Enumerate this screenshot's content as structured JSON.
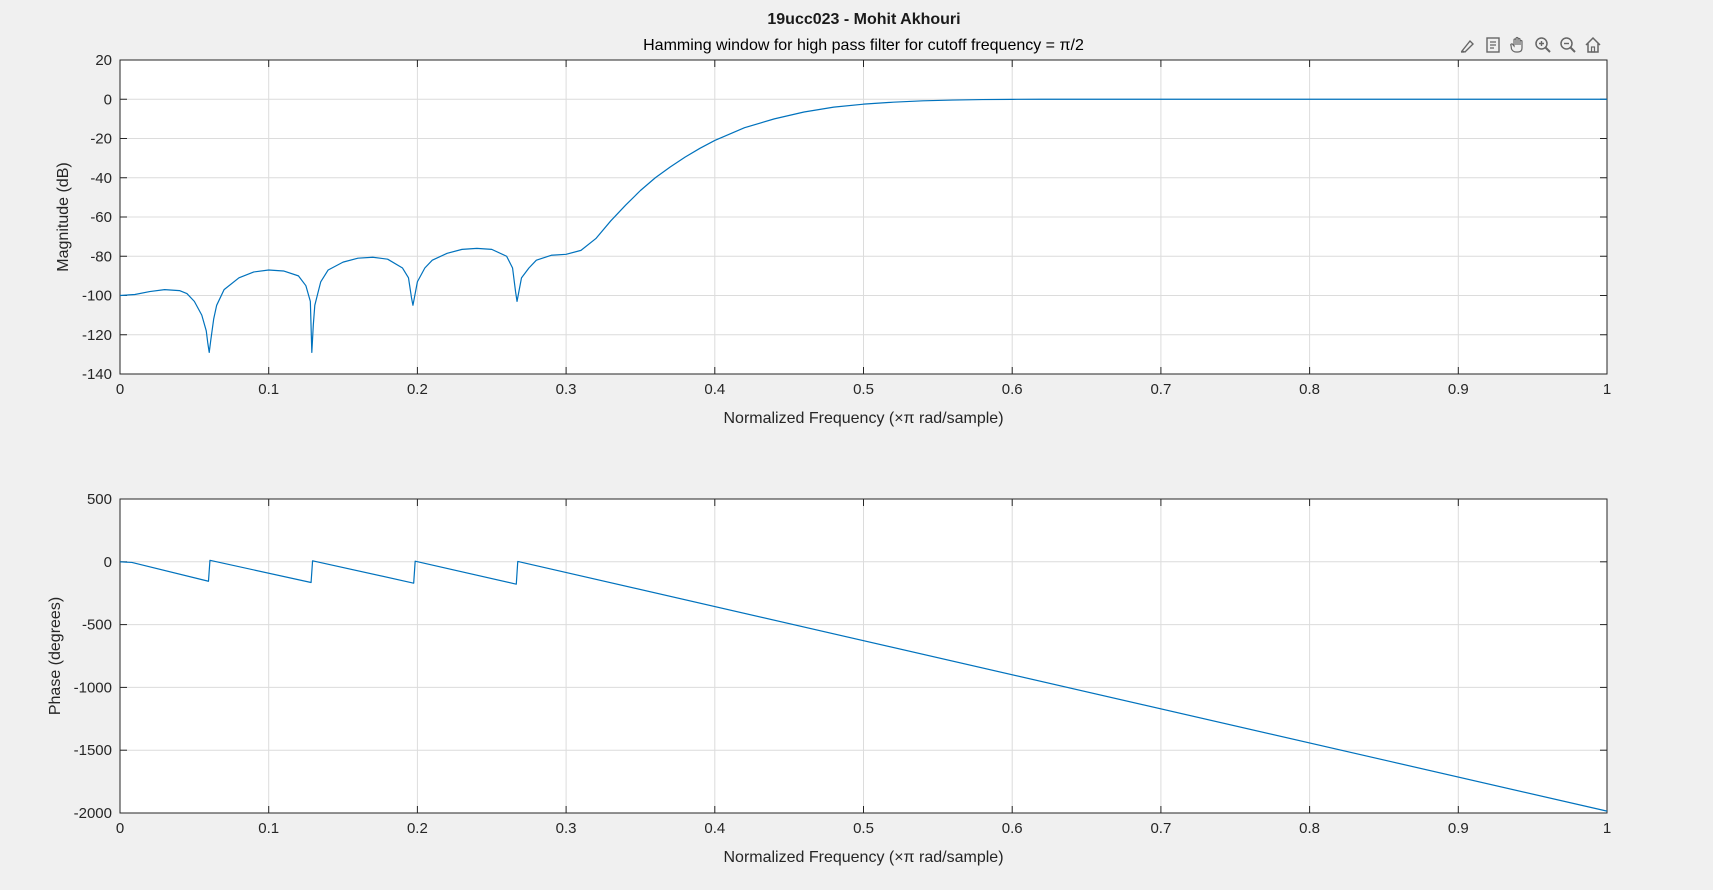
{
  "figure": {
    "suptitle": "19ucc023 - Mohit Akhouri",
    "colors": {
      "background": "#f0f0f0",
      "axes": "#ffffff",
      "line": "#0072bd",
      "grid": "#dcdcdc",
      "text": "#262626"
    }
  },
  "toolbar": {
    "icons": [
      "brush-icon",
      "datatip-icon",
      "pan-icon",
      "zoom-in-icon",
      "zoom-out-icon",
      "home-icon"
    ]
  },
  "chart_data": [
    {
      "type": "line",
      "title": "Hamming window for high pass filter for cutoff frequency = π/2",
      "xlabel": "Normalized Frequency  (×π rad/sample)",
      "ylabel": "Magnitude (dB)",
      "xlim": [
        0,
        1
      ],
      "ylim": [
        -140,
        20
      ],
      "xticks": [
        0,
        0.1,
        0.2,
        0.3,
        0.4,
        0.5,
        0.6,
        0.7,
        0.8,
        0.9,
        1
      ],
      "xtick_labels": [
        "0",
        "0.1",
        "0.2",
        "0.3",
        "0.4",
        "0.5",
        "0.6",
        "0.7",
        "0.8",
        "0.9",
        "1"
      ],
      "yticks": [
        20,
        0,
        -20,
        -40,
        -60,
        -80,
        -100,
        -120,
        -140
      ],
      "ytick_labels": [
        "20",
        "0",
        "-20",
        "-40",
        "-60",
        "-80",
        "-100",
        "-120",
        "-140"
      ],
      "grid": true,
      "series": [
        {
          "name": "magnitude",
          "x": [
            0,
            0.01,
            0.02,
            0.03,
            0.04,
            0.045,
            0.05,
            0.055,
            0.058,
            0.059,
            0.06,
            0.061,
            0.063,
            0.065,
            0.07,
            0.08,
            0.09,
            0.1,
            0.11,
            0.12,
            0.125,
            0.128,
            0.129,
            0.13,
            0.131,
            0.133,
            0.135,
            0.14,
            0.15,
            0.16,
            0.17,
            0.18,
            0.19,
            0.194,
            0.196,
            0.197,
            0.198,
            0.2,
            0.205,
            0.21,
            0.22,
            0.23,
            0.24,
            0.25,
            0.26,
            0.264,
            0.266,
            0.267,
            0.268,
            0.27,
            0.275,
            0.28,
            0.29,
            0.3,
            0.31,
            0.32,
            0.33,
            0.34,
            0.35,
            0.36,
            0.37,
            0.38,
            0.39,
            0.4,
            0.42,
            0.44,
            0.46,
            0.48,
            0.5,
            0.52,
            0.54,
            0.56,
            0.58,
            0.6,
            0.62,
            0.65,
            0.7,
            0.8,
            0.9,
            1.0
          ],
          "y": [
            -100,
            -99.5,
            -98,
            -97,
            -97.5,
            -99,
            -103,
            -110,
            -118,
            -124,
            -129,
            -123,
            -112,
            -105,
            -97,
            -91,
            -88,
            -87,
            -87.5,
            -90,
            -95,
            -103,
            -129,
            -115,
            -105,
            -99,
            -93,
            -87,
            -83,
            -81,
            -80.5,
            -81.5,
            -86,
            -91,
            -101,
            -105,
            -101,
            -93,
            -86,
            -82,
            -78.5,
            -76.5,
            -76,
            -76.5,
            -80,
            -86,
            -98,
            -103,
            -99,
            -91,
            -86,
            -82,
            -79.5,
            -79,
            -77,
            -71,
            -62,
            -54,
            -46.5,
            -40,
            -34.5,
            -29.5,
            -25,
            -21,
            -14.5,
            -10,
            -6.5,
            -4,
            -2.5,
            -1.5,
            -0.8,
            -0.4,
            -0.15,
            -0.05,
            0,
            0,
            0,
            0,
            0,
            0
          ]
        }
      ]
    },
    {
      "type": "line",
      "title": "",
      "xlabel": "Normalized Frequency  (×π rad/sample)",
      "ylabel": "Phase (degrees)",
      "xlim": [
        0,
        1
      ],
      "ylim": [
        -2000,
        500
      ],
      "xticks": [
        0,
        0.1,
        0.2,
        0.3,
        0.4,
        0.5,
        0.6,
        0.7,
        0.8,
        0.9,
        1
      ],
      "xtick_labels": [
        "0",
        "0.1",
        "0.2",
        "0.3",
        "0.4",
        "0.5",
        "0.6",
        "0.7",
        "0.8",
        "0.9",
        "1"
      ],
      "yticks": [
        500,
        0,
        -500,
        -1000,
        -1500,
        -2000
      ],
      "ytick_labels": [
        "500",
        "0",
        "-500",
        "-1000",
        "-1500",
        "-2000"
      ],
      "grid": true,
      "series": [
        {
          "name": "phase",
          "x": [
            0,
            0.008,
            0.0595,
            0.0605,
            0.1285,
            0.1295,
            0.1975,
            0.1985,
            0.2665,
            0.2675,
            1.0
          ],
          "y": [
            0,
            -5,
            -155,
            12,
            -165,
            8,
            -170,
            5,
            -178,
            3,
            -1985
          ]
        }
      ]
    }
  ]
}
